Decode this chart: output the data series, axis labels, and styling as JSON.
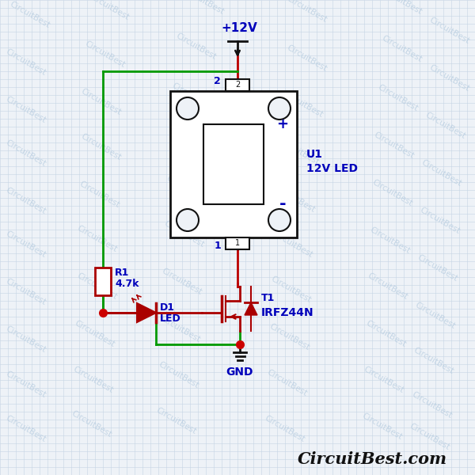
{
  "bg_color": "#eef2f7",
  "grid_color": "#c5d5e5",
  "wire_green": "#009900",
  "wire_red": "#bb0000",
  "comp_red": "#aa0000",
  "text_blue": "#0000bb",
  "text_black": "#111111",
  "junc_red": "#cc0000",
  "watermark_color": "#b0c8dd",
  "watermark_alpha": 0.65,
  "title_text": "CircuitBest.com",
  "watermark_text": "CircuitBest",
  "vcc_label": "+12V",
  "gnd_label": "GND",
  "u1_line1": "U1",
  "u1_line2": "12V LED",
  "r1_line1": "R1",
  "r1_line2": "4.7k",
  "d1_line1": "D1",
  "d1_line2": "LED",
  "t1_line1": "T1",
  "t1_line2": "IRFZ44N",
  "lw": 2.0,
  "grid_step": 10
}
